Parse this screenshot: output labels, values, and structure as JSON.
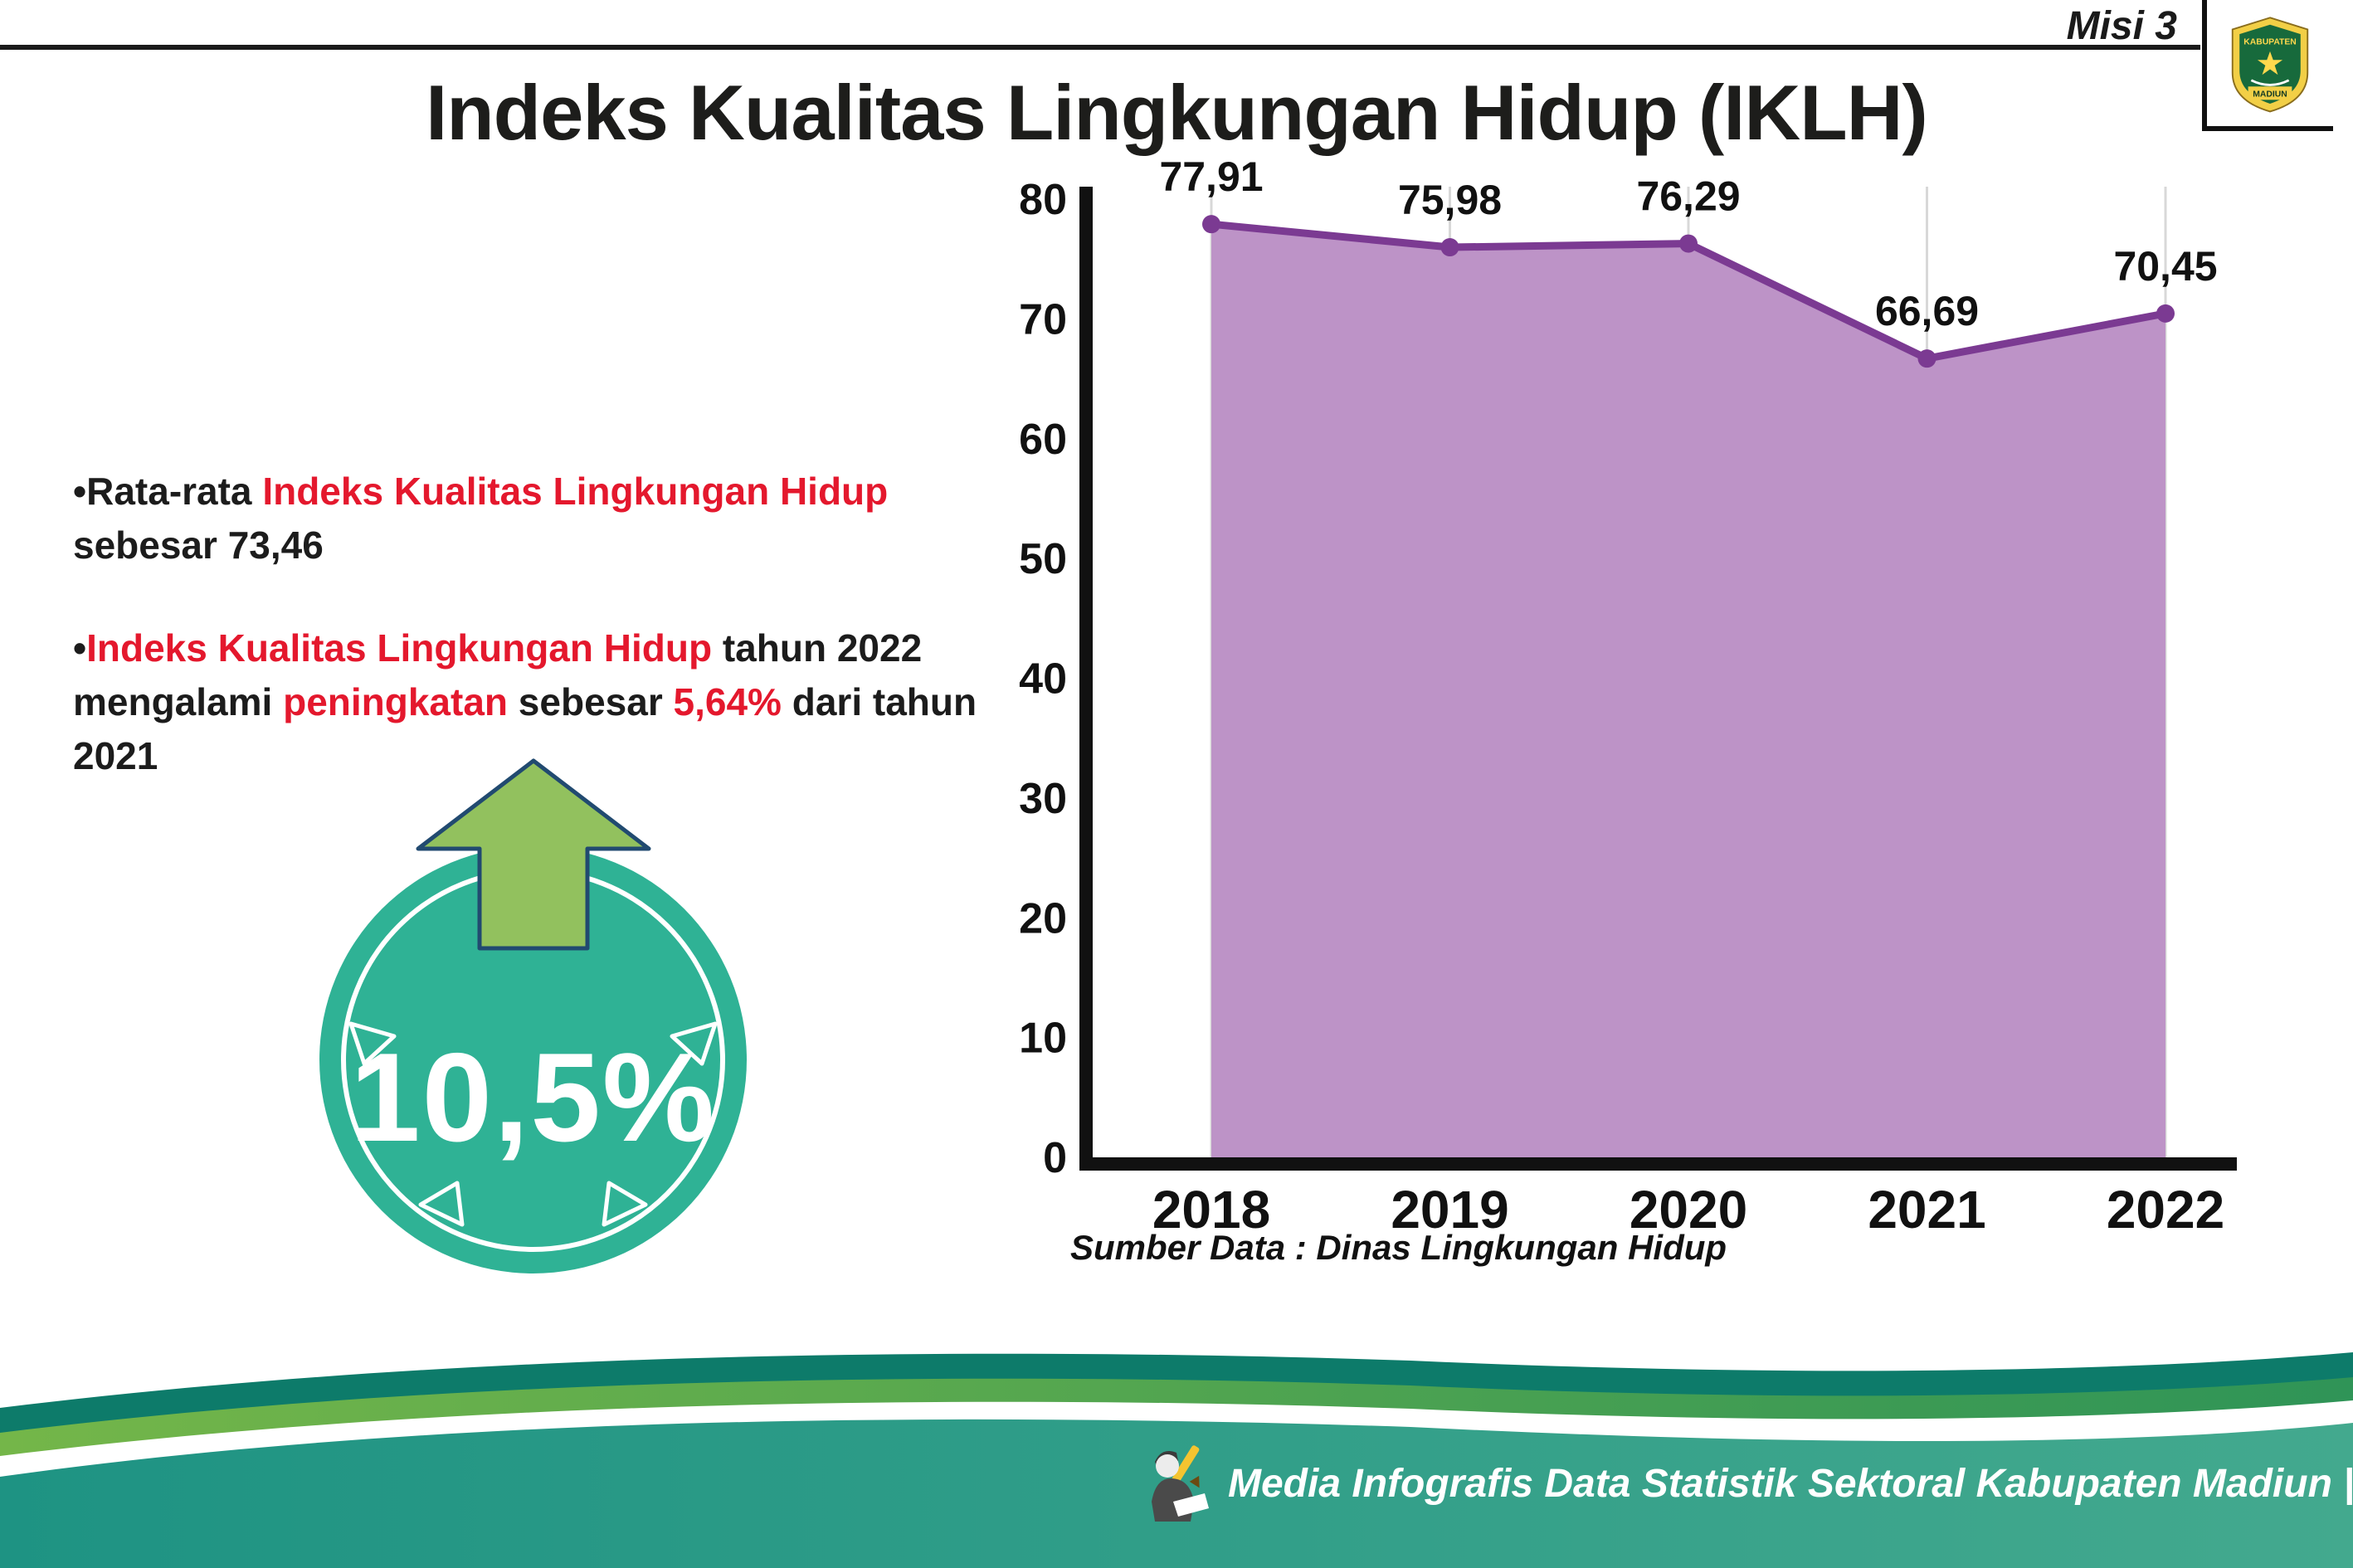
{
  "header": {
    "misi": "Misi 3",
    "logo": {
      "top_text": "KABUPATEN",
      "bottom_text": "MADIUN"
    }
  },
  "title": "Indeks Kualitas Lingkungan Hidup (IKLH)",
  "bullet_char": "•",
  "bullets": {
    "b1": [
      "Rata-rata ",
      "Indeks Kualitas Lingkungan Hidup",
      " sebesar 73,46"
    ],
    "b2": [
      "Indeks Kualitas Lingkungan Hidup",
      " tahun 2022 mengalami ",
      "peningkatan",
      " sebesar ",
      "5,64%",
      " dari tahun 2021"
    ]
  },
  "badge": {
    "value": "10,5%"
  },
  "chart_data": {
    "type": "area",
    "title": "",
    "categories": [
      "2018",
      "2019",
      "2020",
      "2021",
      "2022"
    ],
    "values": [
      77.91,
      75.98,
      76.29,
      66.69,
      70.45
    ],
    "value_labels": [
      "77,91",
      "75,98",
      "76,29",
      "66,69",
      "70,45"
    ],
    "ylim": [
      0,
      80
    ],
    "yticks": [
      0,
      10,
      20,
      30,
      40,
      50,
      60,
      70,
      80
    ],
    "grid": "vertical",
    "legend": "none",
    "fill_color": "#bd93c7",
    "line_color": "#7b3a92",
    "source": "Sumber Data : Dinas Lingkungan Hidup"
  },
  "footer": {
    "credit": "Media Infografis Data Statistik Sektoral Kabupaten Madiun |"
  },
  "colors": {
    "accent_red": "#e4182d",
    "badge_teal": "#2fb295",
    "arrow_green": "#92c15e",
    "footer_teal": "#1e9383",
    "footer_green": "#5aab4b"
  }
}
